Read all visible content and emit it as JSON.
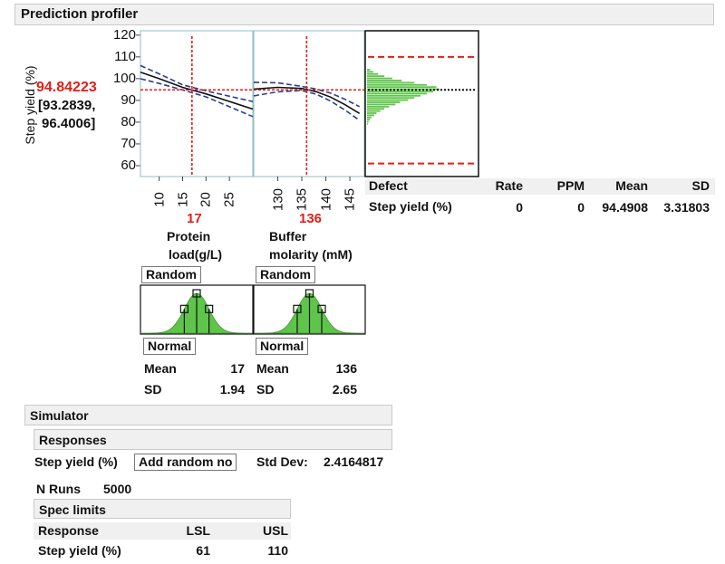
{
  "profiler": {
    "title": "Prediction profiler",
    "y_label": "Step yield (%)",
    "prediction": "94.84223",
    "ci_low": "[93.2839,",
    "ci_high": "96.4006]",
    "y_ticks": [
      "120",
      "110",
      "100",
      "90",
      "80",
      "70",
      "60"
    ],
    "y_range": [
      55,
      122
    ],
    "factors": [
      {
        "name_line1": "Protein",
        "name_line2": "load(g/L)",
        "current": "17",
        "current_value": 17,
        "x_range": [
          6,
          30
        ],
        "x_ticks": [
          "10",
          "15",
          "20",
          "25"
        ],
        "x_tick_values": [
          10,
          15,
          20,
          25
        ],
        "distribution_button": "Random",
        "dist_type_button": "Normal",
        "mean_label": "Mean",
        "mean": "17",
        "sd_label": "SD",
        "sd": "1.94",
        "curve": {
          "x": [
            6,
            10,
            15,
            20,
            25,
            30
          ],
          "y": [
            103,
            100,
            96,
            93,
            89.5,
            86
          ]
        }
      },
      {
        "name_line1": "Buffer",
        "name_line2": "molarity (mM)",
        "current": "136",
        "current_value": 136,
        "x_range": [
          125,
          148
        ],
        "x_ticks": [
          "130",
          "135",
          "140",
          "145"
        ],
        "x_tick_values": [
          130,
          135,
          140,
          145
        ],
        "distribution_button": "Random",
        "dist_type_button": "Normal",
        "mean_label": "Mean",
        "mean": "136",
        "sd_label": "SD",
        "sd": "2.65",
        "curve": {
          "x": [
            125,
            130,
            135,
            138,
            141,
            144,
            147
          ],
          "y": [
            95.2,
            96,
            95.5,
            94,
            91.5,
            88,
            84
          ]
        }
      }
    ],
    "histogram": {
      "lsl": 61,
      "usl": 110,
      "mean": 94.84,
      "bins_center": [
        79,
        80,
        81,
        82,
        83,
        84,
        85,
        86,
        87,
        88,
        89,
        90,
        91,
        92,
        93,
        94,
        95,
        96,
        97,
        98,
        99,
        100,
        101,
        102,
        103,
        104
      ],
      "bins_counts": [
        5,
        10,
        18,
        28,
        45,
        60,
        85,
        110,
        140,
        180,
        210,
        260,
        300,
        340,
        380,
        420,
        460,
        440,
        380,
        300,
        220,
        160,
        110,
        70,
        40,
        20
      ]
    },
    "colors": {
      "accent_red": "#e0201a",
      "fill_green": "#5ec54a",
      "curve_blue": "#2b3e8f"
    }
  },
  "defect_table": {
    "headers": [
      "Defect",
      "Rate",
      "PPM",
      "Mean",
      "SD"
    ],
    "row": {
      "name": "Step yield (%)",
      "rate": "0",
      "ppm": "0",
      "mean": "94.4908",
      "sd": "3.31803"
    }
  },
  "simulator": {
    "title": "Simulator",
    "responses_title": "Responses",
    "response_label": "Step yield (%)",
    "add_random_button": "Add random no",
    "std_dev_label": "Std Dev:",
    "std_dev_value": "2.4164817",
    "n_runs_label": "N Runs",
    "n_runs_value": "5000",
    "spec_title": "Spec limits",
    "spec_headers": [
      "Response",
      "LSL",
      "USL"
    ],
    "spec_row": {
      "name": "Step yield (%)",
      "lsl": "61",
      "usl": "110"
    }
  }
}
